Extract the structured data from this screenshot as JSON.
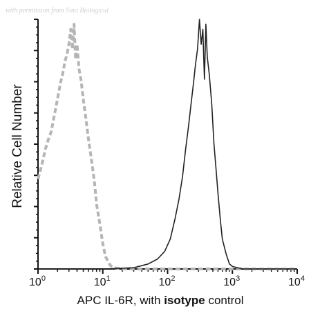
{
  "watermark": "with permission from Sino Biological",
  "chart_data": {
    "type": "line",
    "xlabel": "APC  IL-6R,  with isotype control",
    "xlabel_parts": [
      "APC  IL-6R,  with ",
      "isotype",
      " control"
    ],
    "ylabel": "Relative Cell Number",
    "x_scale": "log",
    "xlim": [
      1,
      10000
    ],
    "ylim": [
      0,
      100
    ],
    "grid": false,
    "x_ticks": [
      {
        "base": "10",
        "exp": "0",
        "value": 1
      },
      {
        "base": "10",
        "exp": "1",
        "value": 10
      },
      {
        "base": "10",
        "exp": "2",
        "value": 100
      },
      {
        "base": "10",
        "exp": "3",
        "value": 1000
      },
      {
        "base": "10",
        "exp": "4",
        "value": 10000
      }
    ],
    "y_major_ticks": [
      0,
      12.5,
      25,
      37.5,
      50,
      62.5,
      75,
      87.5,
      100
    ],
    "series": [
      {
        "style": "dashed",
        "color": "#b5b5b5",
        "x": [
          1.0,
          1.1,
          1.2,
          1.3,
          1.45,
          1.6,
          1.8,
          2.0,
          2.2,
          2.4,
          2.6,
          2.8,
          3.0,
          3.2,
          3.4,
          3.6,
          3.8,
          4.0,
          4.3,
          4.6,
          5.0,
          5.5,
          6.0,
          6.5,
          7.0,
          7.5,
          8.0,
          9.0,
          10.0,
          11.0,
          13.0,
          15.0,
          20.0,
          30.0,
          100.0,
          1000.0,
          10000.0
        ],
        "y": [
          36,
          40,
          44,
          48,
          52,
          55,
          62,
          68,
          74,
          78,
          83,
          86,
          90,
          96,
          88,
          98,
          84,
          90,
          80,
          76,
          68,
          60,
          52,
          46,
          40,
          34,
          26,
          18,
          10,
          5,
          1.5,
          0.5,
          0,
          0,
          0,
          0,
          0
        ]
      },
      {
        "style": "solid",
        "color": "#222222",
        "x": [
          1.0,
          5.0,
          10.0,
          30.0,
          50.0,
          70.0,
          90.0,
          110.0,
          130.0,
          150.0,
          170.0,
          190.0,
          210.0,
          230.0,
          250.0,
          270.0,
          290.0,
          310.0,
          330.0,
          350.0,
          370.0,
          390.0,
          410.0,
          440.0,
          480.0,
          520.0,
          560.0,
          600.0,
          650.0,
          700.0,
          800.0,
          900.0,
          1000.0,
          1200.0,
          1500.0,
          3000.0,
          10000.0
        ],
        "y": [
          0,
          0,
          0,
          0.5,
          2,
          4,
          7,
          12,
          20,
          28,
          37,
          48,
          57,
          66,
          74,
          82,
          88,
          100,
          90,
          96,
          76,
          98,
          85,
          78,
          66,
          50,
          40,
          30,
          20,
          12,
          6,
          2,
          1,
          0.5,
          0,
          0,
          0
        ]
      }
    ]
  }
}
